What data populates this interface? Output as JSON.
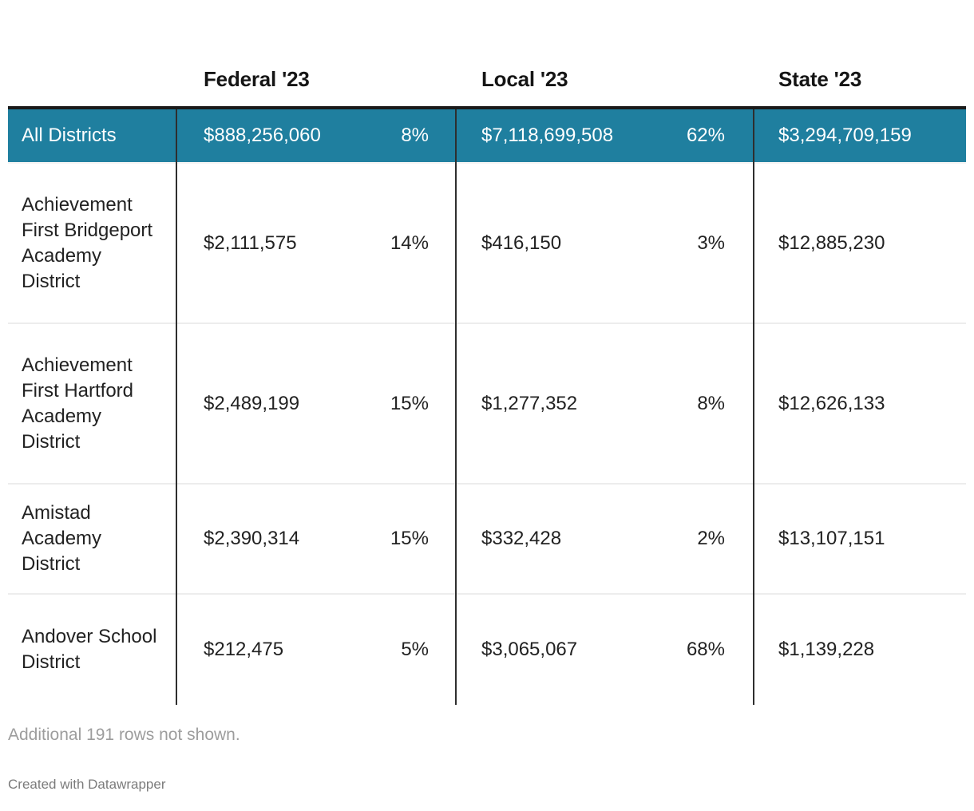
{
  "chart_data": {
    "type": "table",
    "column_headers": [
      "Federal '23",
      "Local '23",
      "State '23"
    ],
    "rows": [
      {
        "name": "All Districts",
        "federal": "$888,256,060",
        "federal_pct": "8%",
        "local": "$7,118,699,508",
        "local_pct": "62%",
        "state": "$3,294,709,159",
        "is_total": true
      },
      {
        "name": "Achievement First Bridgeport Academy District",
        "federal": "$2,111,575",
        "federal_pct": "14%",
        "local": "$416,150",
        "local_pct": "3%",
        "state": "$12,885,230",
        "is_total": false
      },
      {
        "name": "Achievement First Hartford Academy District",
        "federal": "$2,489,199",
        "federal_pct": "15%",
        "local": "$1,277,352",
        "local_pct": "8%",
        "state": "$12,626,133",
        "is_total": false
      },
      {
        "name": "Amistad Academy District",
        "federal": "$2,390,314",
        "federal_pct": "15%",
        "local": "$332,428",
        "local_pct": "2%",
        "state": "$13,107,151",
        "is_total": false
      },
      {
        "name": "Andover School District",
        "federal": "$212,475",
        "federal_pct": "5%",
        "local": "$3,065,067",
        "local_pct": "68%",
        "state": "$1,139,228",
        "is_total": false
      }
    ]
  },
  "footer": {
    "note": "Additional 191 rows not shown.",
    "attribution": "Created with Datawrapper"
  },
  "colors": {
    "highlight_row_bg": "#1f7f9f",
    "highlight_row_text": "#ffffff",
    "table_top_border": "#1a1a1a",
    "column_divider": "#2e2e2e",
    "row_separator": "#ededed",
    "body_text": "#222222",
    "footer_note_text": "#9d9d9d",
    "attribution_text": "#7b7b7b"
  }
}
